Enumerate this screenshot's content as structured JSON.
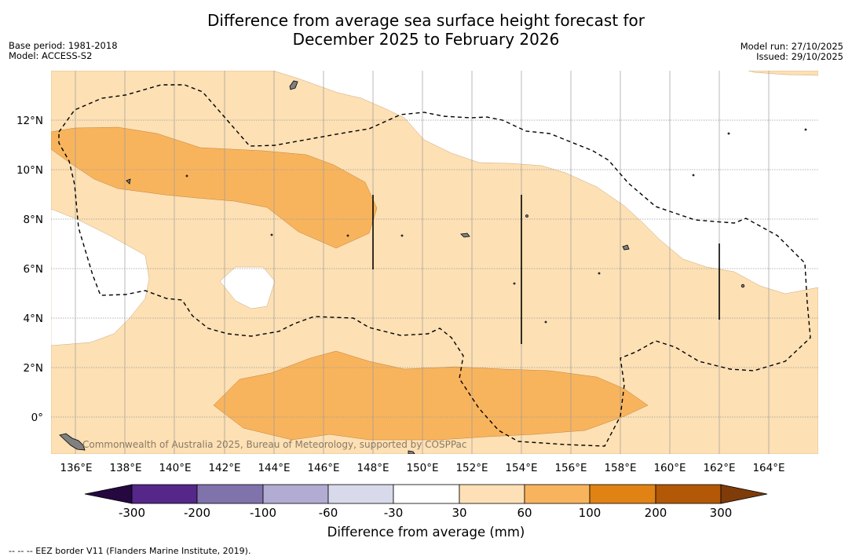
{
  "title_line1": "Difference from average sea surface height forecast for",
  "title_line2": "December 2025 to February 2026",
  "base_period": "Base period: 1981-2018",
  "model": "Model: ACCESS-S2",
  "model_run": "Model run: 27/10/2025",
  "issued": "Issued: 29/10/2025",
  "copyright": "Commonwealth of Australia 2025, Bureau of Meteorology, supported by COSPPac",
  "footnote": "--  --  -- EEZ border V11 (Flanders Marine Institute, 2019).",
  "lon_labels": [
    "136°E",
    "138°E",
    "140°E",
    "142°E",
    "144°E",
    "146°E",
    "148°E",
    "150°E",
    "152°E",
    "154°E",
    "156°E",
    "158°E",
    "160°E",
    "162°E",
    "164°E"
  ],
  "lat_labels": [
    "12°N",
    "10°N",
    "8°N",
    "6°N",
    "4°N",
    "2°N",
    "0°"
  ],
  "colorbar": {
    "title": "Difference from average (mm)",
    "tick_labels": [
      "-300",
      "-200",
      "-100",
      "-60",
      "-30",
      "30",
      "60",
      "100",
      "200",
      "300"
    ],
    "colors": [
      "#24083f",
      "#542788",
      "#8073ac",
      "#b2abd2",
      "#d8daeb",
      "#ffffff",
      "#fee0b6",
      "#f8b45d",
      "#e08214",
      "#b35806",
      "#7f3b08"
    ]
  }
}
